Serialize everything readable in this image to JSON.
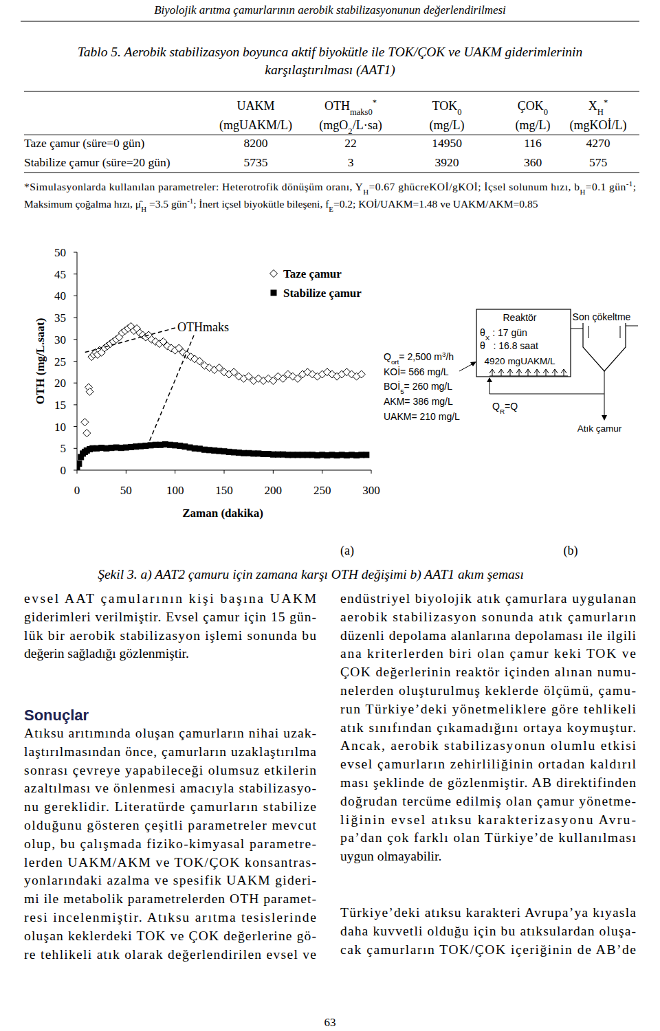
{
  "header": "Biyolojik arıtma çamurlarının aerobik stabilizasyonunun değerlendirilmesi",
  "table": {
    "caption": [
      "Tablo 5. Aerobik stabilizasyon boyunca aktif biyokütle ile TOK/ÇOK ve UAKM giderimlerinin",
      "karşılaştırılması (AAT1)"
    ],
    "header": [
      {
        "name": [
          "UAKM"
        ],
        "unit": [
          "(mgUAKM/L)"
        ]
      },
      {
        "name": [
          "OTH",
          {
            "sub": "maks0"
          },
          {
            "sup": "*"
          }
        ],
        "unit": [
          "(mgO",
          {
            "sub": "2"
          },
          "/L·sa)"
        ]
      },
      {
        "name": [
          "TOK",
          {
            "sub": "0"
          }
        ],
        "unit": [
          "(mg/L)"
        ]
      },
      {
        "name": [
          "ÇOK",
          {
            "sub": "0"
          }
        ],
        "unit": [
          "(mg/L)"
        ]
      },
      {
        "name": [
          "X",
          {
            "sub": "H"
          },
          {
            "sup": "*"
          }
        ],
        "unit": [
          "(mgKOİ/L)"
        ]
      }
    ],
    "rows": [
      [
        "Taze çamur (süre=0 gün)",
        "8200",
        "22",
        "14950",
        "116",
        "4270"
      ],
      [
        "Stabilize çamur (süre=20 gün)",
        "5735",
        "3",
        "3920",
        "360",
        "575"
      ]
    ],
    "footnote": [
      [
        "*Simulasyonlarda kullanılan parametreler: Heterotrofik dönüşüm oranı, Y",
        {
          "sub": "H"
        },
        "=0.67 ghücreKOİ/gKOİ; İçsel solunum hızı, b",
        {
          "sub": "H"
        },
        "=0.1 gün",
        {
          "sup": "-1"
        },
        ";"
      ],
      [
        "Maksimum çoğalma hızı, ",
        "μ̂",
        {
          "sub": "H"
        },
        " =3.5 gün",
        {
          "sup": "-1"
        },
        "; İnert içsel biyokütle bileşeni, f",
        {
          "sub": "E"
        },
        "=0.2; KOİ/UAKM=1.48 ve UAKM/AKM=0.85"
      ]
    ]
  },
  "chart_data": {
    "type": "scatter",
    "x_label": "Zaman (dakika)",
    "y_label": "OTH (mg/L.saat)",
    "annotation": "OTHmaks",
    "xlim": [
      0,
      300
    ],
    "xticks": [
      0,
      50,
      100,
      150,
      200,
      250,
      300
    ],
    "ylim": [
      0,
      50
    ],
    "yticks": [
      0,
      5,
      10,
      15,
      20,
      25,
      30,
      35,
      40,
      45,
      50
    ],
    "legend": "top",
    "series": [
      {
        "name": "Taze çamur",
        "marker": "diamond-open",
        "color": "#000000",
        "x": [
          8,
          10,
          12,
          13,
          15,
          17,
          19,
          21,
          23,
          25,
          28,
          31,
          34,
          37,
          40,
          43,
          46,
          49,
          52,
          55,
          58,
          61,
          64,
          67,
          70,
          73,
          76,
          80,
          84,
          88,
          92,
          96,
          100,
          104,
          108,
          112,
          116,
          120,
          125,
          130,
          135,
          140,
          145,
          150,
          155,
          160,
          165,
          170,
          175,
          180,
          185,
          190,
          195,
          200,
          205,
          210,
          215,
          220,
          225,
          230,
          235,
          240,
          245,
          250,
          255,
          260,
          265,
          270,
          275,
          280,
          285,
          290
        ],
        "values": [
          11,
          8.5,
          19,
          18,
          26,
          26.5,
          27,
          26.5,
          27.5,
          27,
          28,
          28.5,
          29,
          29.5,
          30,
          30.5,
          31.5,
          32,
          32.5,
          33,
          32,
          32.5,
          31.5,
          31,
          30.5,
          31,
          30,
          29.5,
          29,
          29.5,
          28.5,
          28,
          27.5,
          28,
          27,
          26.5,
          26,
          25.5,
          25,
          24,
          23.5,
          23,
          23.5,
          22.5,
          22,
          22.5,
          21.5,
          21,
          21.5,
          20.5,
          21,
          20.5,
          21,
          20.5,
          21.5,
          21,
          22,
          21.5,
          21,
          22,
          22.5,
          22,
          21.5,
          22,
          22.5,
          22,
          21.5,
          22,
          22.5,
          22,
          21.5,
          22
        ]
      },
      {
        "name": "Stabilize çamur",
        "marker": "square",
        "color": "#000000",
        "x": [
          0,
          2,
          4,
          6,
          8,
          10,
          13,
          16,
          20,
          25,
          30,
          35,
          40,
          45,
          50,
          55,
          60,
          65,
          70,
          75,
          80,
          85,
          90,
          95,
          100,
          105,
          110,
          115,
          120,
          125,
          130,
          135,
          140,
          145,
          150,
          155,
          160,
          165,
          170,
          175,
          180,
          185,
          190,
          195,
          200,
          205,
          210,
          215,
          220,
          225,
          230,
          235,
          240,
          245,
          250,
          255,
          260,
          265,
          270,
          275,
          280,
          285,
          290,
          295
        ],
        "values": [
          0.5,
          1.5,
          3,
          3.8,
          4.2,
          4.5,
          4.8,
          5,
          5,
          5.1,
          5,
          5.1,
          5.2,
          5.1,
          5.2,
          5.3,
          5.4,
          5.5,
          5.6,
          5.7,
          5.8,
          5.8,
          5.9,
          5.8,
          5.7,
          5.6,
          5.4,
          5.2,
          5.0,
          4.9,
          4.7,
          4.6,
          4.5,
          4.4,
          4.3,
          4.2,
          4.1,
          4.0,
          3.9,
          3.9,
          3.8,
          3.8,
          3.7,
          3.7,
          3.6,
          3.6,
          3.6,
          3.5,
          3.5,
          3.5,
          3.5,
          3.5,
          3.5,
          3.4,
          3.5,
          3.4,
          3.5,
          3.4,
          3.5,
          3.4,
          3.5,
          3.4,
          3.5,
          3.5
        ]
      }
    ]
  },
  "diagram": {
    "influent": [
      [
        "Q",
        {
          "sub": "ort"
        },
        "= 2,500 m",
        {
          "sup": "3"
        },
        "/h"
      ],
      [
        "KOİ= 566 mg/L"
      ],
      [
        "BOİ",
        {
          "sub": "5"
        },
        "= 260 mg/L"
      ],
      [
        "AKM= 386 mg/L"
      ],
      [
        "UAKM= 210 mg/L"
      ]
    ],
    "reactor": {
      "title": "Reaktör",
      "lines": [
        [
          "θ",
          {
            "sub": "X"
          },
          " : 17 gün"
        ],
        [
          "θ   : 16.8 saat"
        ],
        [
          "4920 mgUAKM/L"
        ]
      ]
    },
    "settler": "Son çökeltme",
    "recycle": [
      "Q",
      {
        "sub": "R"
      },
      "=Q"
    ],
    "waste": "Atık çamur"
  },
  "figure": {
    "label_a": "(a)",
    "label_b": "(b)",
    "caption": "Şekil 3. a) AAT2 çamuru için zamana karşı OTH değişimi b) AAT1 akım şeması"
  },
  "columns": {
    "left": {
      "paragraph1": [
        "evsel AAT çamularının kişi başına UAKM",
        "giderimleri verilmiştir. Evsel çamur için 15 gün-",
        "lük bir aerobik stabilizasyon işlemi sonunda bu",
        "değerin sağladığı gözlenmiştir."
      ],
      "heading": "Sonuçlar",
      "paragraph2": [
        "Atıksu arıtımında oluşan çamurların nihai uzak-",
        "laştırılmasından önce, çamurların uzaklaştırılma",
        "sonrası çevreye yapabileceği olumsuz etkilerin",
        "azaltılması ve önlenmesi amacıyla stabilizasyo-",
        "nu gereklidir. Literatürde çamurların stabilize",
        "olduğunu gösteren çeşitli parametreler mevcut",
        "olup, bu çalışmada fiziko-kimyasal parametre-",
        "lerden UAKM/AKM ve TOK/ÇOK konsantras-",
        "yonlarındaki azalma ve spesifik UAKM gideri-",
        "mi ile metabolik parametrelerden OTH paramet-",
        "resi incelenmiştir. Atıksu arıtma tesislerinde",
        "oluşan keklerdeki TOK ve ÇOK değerlerine gö-",
        "re tehlikeli atık olarak değerlendirilen evsel ve"
      ]
    },
    "right": {
      "paragraph1": [
        "endüstriyel biyolojik atık çamurlara uygulanan",
        "aerobik stabilizasyon sonunda atık çamurların",
        "düzenli depolama alanlarına depolaması ile ilgili",
        "ana kriterlerden biri olan çamur keki TOK ve",
        "ÇOK değerlerinin reaktör içinden alınan numu-",
        "nelerden oluşturulmuş keklerde ölçümü, çamu-",
        "run Türkiye’deki yönetmeliklere göre tehlikeli",
        "atık sınıfından çıkamadığını ortaya koymuştur.",
        "Ancak, aerobik stabilizasyonun olumlu etkisi",
        "evsel çamurların zehirliliğinin ortadan kaldırıl",
        "ması şeklinde de gözlenmiştir. AB direktifinden",
        "doğrudan tercüme edilmiş olan çamur yönetme-",
        "liğinin evsel atıksu karakterizasyonu Avru-",
        "pa’dan çok farklı olan Türkiye’de kullanılması",
        "uygun olmayabilir."
      ],
      "paragraph2": [
        "Türkiye’deki atıksu karakteri Avrupa’ya kıyasla",
        "daha kuvvetli olduğu için bu atıksulardan oluşa-",
        "cak çamurların TOK/ÇOK içeriğinin de AB’de"
      ]
    }
  },
  "page_number": "63"
}
